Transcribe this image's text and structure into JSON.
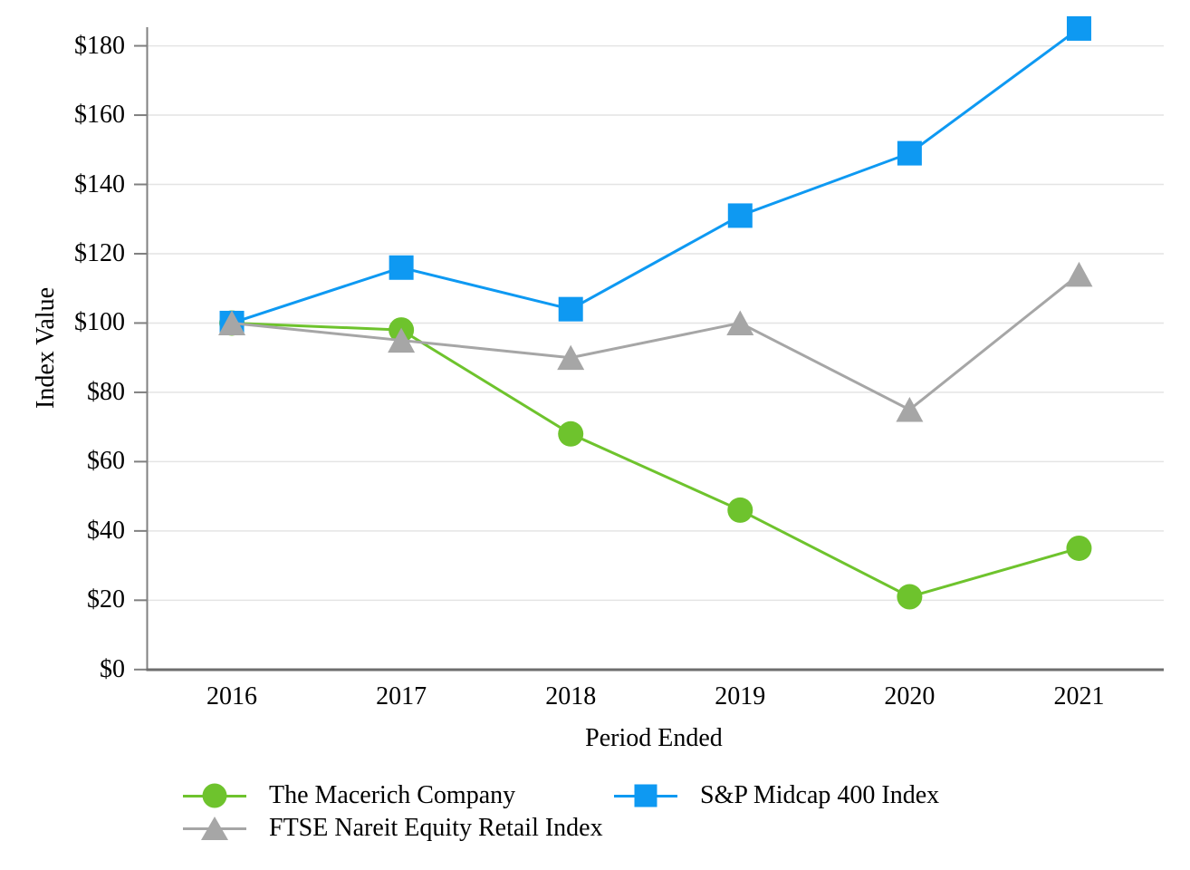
{
  "chart_data": {
    "type": "line",
    "title": "",
    "xlabel": "Period Ended",
    "ylabel": "Index Value",
    "categories": [
      "2016",
      "2017",
      "2018",
      "2019",
      "2020",
      "2021"
    ],
    "series": [
      {
        "name": "The Macerich Company",
        "marker": "circle",
        "color": "#6EC32D",
        "values": [
          100,
          98,
          68,
          46,
          21,
          35
        ]
      },
      {
        "name": "S&P Midcap 400 Index",
        "marker": "square",
        "color": "#0E99F2",
        "values": [
          100,
          116,
          104,
          131,
          149,
          185
        ]
      },
      {
        "name": "FTSE Nareit Equity Retail Index",
        "marker": "triangle",
        "color": "#A6A6A6",
        "values": [
          100,
          95,
          90,
          100,
          75,
          114
        ]
      }
    ],
    "y_axis": {
      "min": 0,
      "max": 180,
      "step": 20,
      "tick_prefix": "$",
      "tick_labels": [
        "$0",
        "$20",
        "$40",
        "$60",
        "$80",
        "$100",
        "$120",
        "$140",
        "$160",
        "$180"
      ]
    },
    "grid": true,
    "legend_position": "bottom",
    "legend_columns": 2
  },
  "styles": {
    "background": "#FFFFFF",
    "grid_color": "#E4E4E4",
    "y_axis_color": "#808080",
    "x_axis_color": "#6E6E6E",
    "tick_color": "#808080",
    "text_color": "#000000"
  }
}
